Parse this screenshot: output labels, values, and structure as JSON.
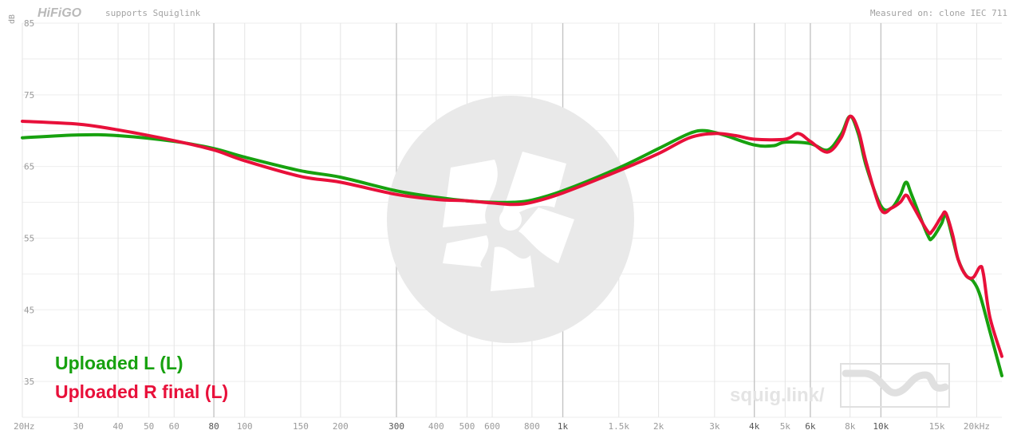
{
  "header": {
    "logo_text": "HiFiGO",
    "tagline": "supports Squiglink",
    "measured_on": "Measured on: clone IEC 711"
  },
  "watermark": {
    "text": "squig.link/"
  },
  "colors": {
    "series_green": "#17a10f",
    "series_red": "#e8103a",
    "grid_light": "#e9e9e9",
    "grid_dark": "#c4c4c4",
    "label_grey": "#8a8a8a",
    "watermark_grey": "#e6e6e6"
  },
  "chart_data": {
    "type": "line",
    "title": "",
    "xlabel": "",
    "ylabel": "dB",
    "x_scale": "log",
    "xlim": [
      20,
      24000
    ],
    "ylim": [
      30,
      85
    ],
    "grid": true,
    "legend_position": "bottom-left",
    "y_ticks": [
      {
        "value": 85,
        "label": "85"
      },
      {
        "value": 75,
        "label": "75"
      },
      {
        "value": 65,
        "label": "65"
      },
      {
        "value": 55,
        "label": "55"
      },
      {
        "value": 45,
        "label": "45"
      },
      {
        "value": 35,
        "label": "35"
      }
    ],
    "x_ticks": [
      {
        "value": 20,
        "label": "20Hz",
        "major": false
      },
      {
        "value": 30,
        "label": "30",
        "major": false
      },
      {
        "value": 40,
        "label": "40",
        "major": false
      },
      {
        "value": 50,
        "label": "50",
        "major": false
      },
      {
        "value": 60,
        "label": "60",
        "major": false
      },
      {
        "value": 80,
        "label": "80",
        "major": true
      },
      {
        "value": 100,
        "label": "100",
        "major": false
      },
      {
        "value": 150,
        "label": "150",
        "major": false
      },
      {
        "value": 200,
        "label": "200",
        "major": false
      },
      {
        "value": 300,
        "label": "300",
        "major": true
      },
      {
        "value": 400,
        "label": "400",
        "major": false
      },
      {
        "value": 500,
        "label": "500",
        "major": false
      },
      {
        "value": 600,
        "label": "600",
        "major": false
      },
      {
        "value": 800,
        "label": "800",
        "major": false
      },
      {
        "value": 1000,
        "label": "1k",
        "major": true
      },
      {
        "value": 1500,
        "label": "1.5k",
        "major": false
      },
      {
        "value": 2000,
        "label": "2k",
        "major": false
      },
      {
        "value": 3000,
        "label": "3k",
        "major": false
      },
      {
        "value": 4000,
        "label": "4k",
        "major": true
      },
      {
        "value": 5000,
        "label": "5k",
        "major": false
      },
      {
        "value": 6000,
        "label": "6k",
        "major": true
      },
      {
        "value": 8000,
        "label": "8k",
        "major": false
      },
      {
        "value": 10000,
        "label": "10k",
        "major": true
      },
      {
        "value": 15000,
        "label": "15k",
        "major": false
      },
      {
        "value": 20000,
        "label": "20kHz",
        "major": false
      }
    ],
    "series": [
      {
        "name": "Uploaded L (L)",
        "color": "#17a10f",
        "points": [
          [
            20,
            69.0
          ],
          [
            30,
            69.4
          ],
          [
            40,
            69.3
          ],
          [
            60,
            68.5
          ],
          [
            80,
            67.5
          ],
          [
            100,
            66.3
          ],
          [
            150,
            64.4
          ],
          [
            200,
            63.5
          ],
          [
            300,
            61.6
          ],
          [
            400,
            60.7
          ],
          [
            500,
            60.2
          ],
          [
            600,
            60.0
          ],
          [
            700,
            60.0
          ],
          [
            800,
            60.3
          ],
          [
            1000,
            61.6
          ],
          [
            1500,
            64.8
          ],
          [
            2000,
            67.5
          ],
          [
            2500,
            69.6
          ],
          [
            2800,
            70.0
          ],
          [
            3200,
            69.4
          ],
          [
            4000,
            68.0
          ],
          [
            4600,
            67.9
          ],
          [
            5000,
            68.4
          ],
          [
            6000,
            68.2
          ],
          [
            6800,
            67.3
          ],
          [
            7500,
            69.5
          ],
          [
            8000,
            72.0
          ],
          [
            8500,
            69.5
          ],
          [
            9000,
            65.0
          ],
          [
            10000,
            59.5
          ],
          [
            10800,
            59.2
          ],
          [
            11500,
            61.0
          ],
          [
            12000,
            62.8
          ],
          [
            12500,
            61.0
          ],
          [
            14000,
            55.5
          ],
          [
            14500,
            55.0
          ],
          [
            15500,
            57.0
          ],
          [
            16000,
            58.3
          ],
          [
            16800,
            55.0
          ],
          [
            17500,
            52.0
          ],
          [
            18500,
            49.8
          ],
          [
            19500,
            49.0
          ],
          [
            20500,
            47.0
          ],
          [
            22000,
            42.0
          ],
          [
            24000,
            35.8
          ]
        ]
      },
      {
        "name": "Uploaded R final (L)",
        "color": "#e8103a",
        "points": [
          [
            20,
            71.3
          ],
          [
            30,
            70.9
          ],
          [
            40,
            70.1
          ],
          [
            60,
            68.6
          ],
          [
            80,
            67.3
          ],
          [
            100,
            65.8
          ],
          [
            150,
            63.6
          ],
          [
            200,
            62.8
          ],
          [
            300,
            61.1
          ],
          [
            400,
            60.4
          ],
          [
            500,
            60.2
          ],
          [
            600,
            59.9
          ],
          [
            700,
            59.7
          ],
          [
            800,
            60.0
          ],
          [
            1000,
            61.3
          ],
          [
            1500,
            64.4
          ],
          [
            2000,
            66.8
          ],
          [
            2500,
            69.0
          ],
          [
            3000,
            69.6
          ],
          [
            3500,
            69.3
          ],
          [
            4000,
            68.8
          ],
          [
            5000,
            68.8
          ],
          [
            5500,
            69.6
          ],
          [
            6000,
            68.5
          ],
          [
            6800,
            67.0
          ],
          [
            7500,
            69.0
          ],
          [
            8000,
            72.0
          ],
          [
            8500,
            70.0
          ],
          [
            9000,
            65.5
          ],
          [
            10000,
            59.0
          ],
          [
            10800,
            59.2
          ],
          [
            11500,
            60.0
          ],
          [
            12000,
            61.0
          ],
          [
            12500,
            59.8
          ],
          [
            14000,
            56.0
          ],
          [
            14500,
            56.0
          ],
          [
            15500,
            58.0
          ],
          [
            16000,
            58.5
          ],
          [
            16800,
            55.5
          ],
          [
            17500,
            52.0
          ],
          [
            18500,
            49.8
          ],
          [
            19500,
            49.5
          ],
          [
            20500,
            51.0
          ],
          [
            21000,
            50.0
          ],
          [
            22000,
            44.0
          ],
          [
            24000,
            38.5
          ]
        ]
      }
    ]
  }
}
